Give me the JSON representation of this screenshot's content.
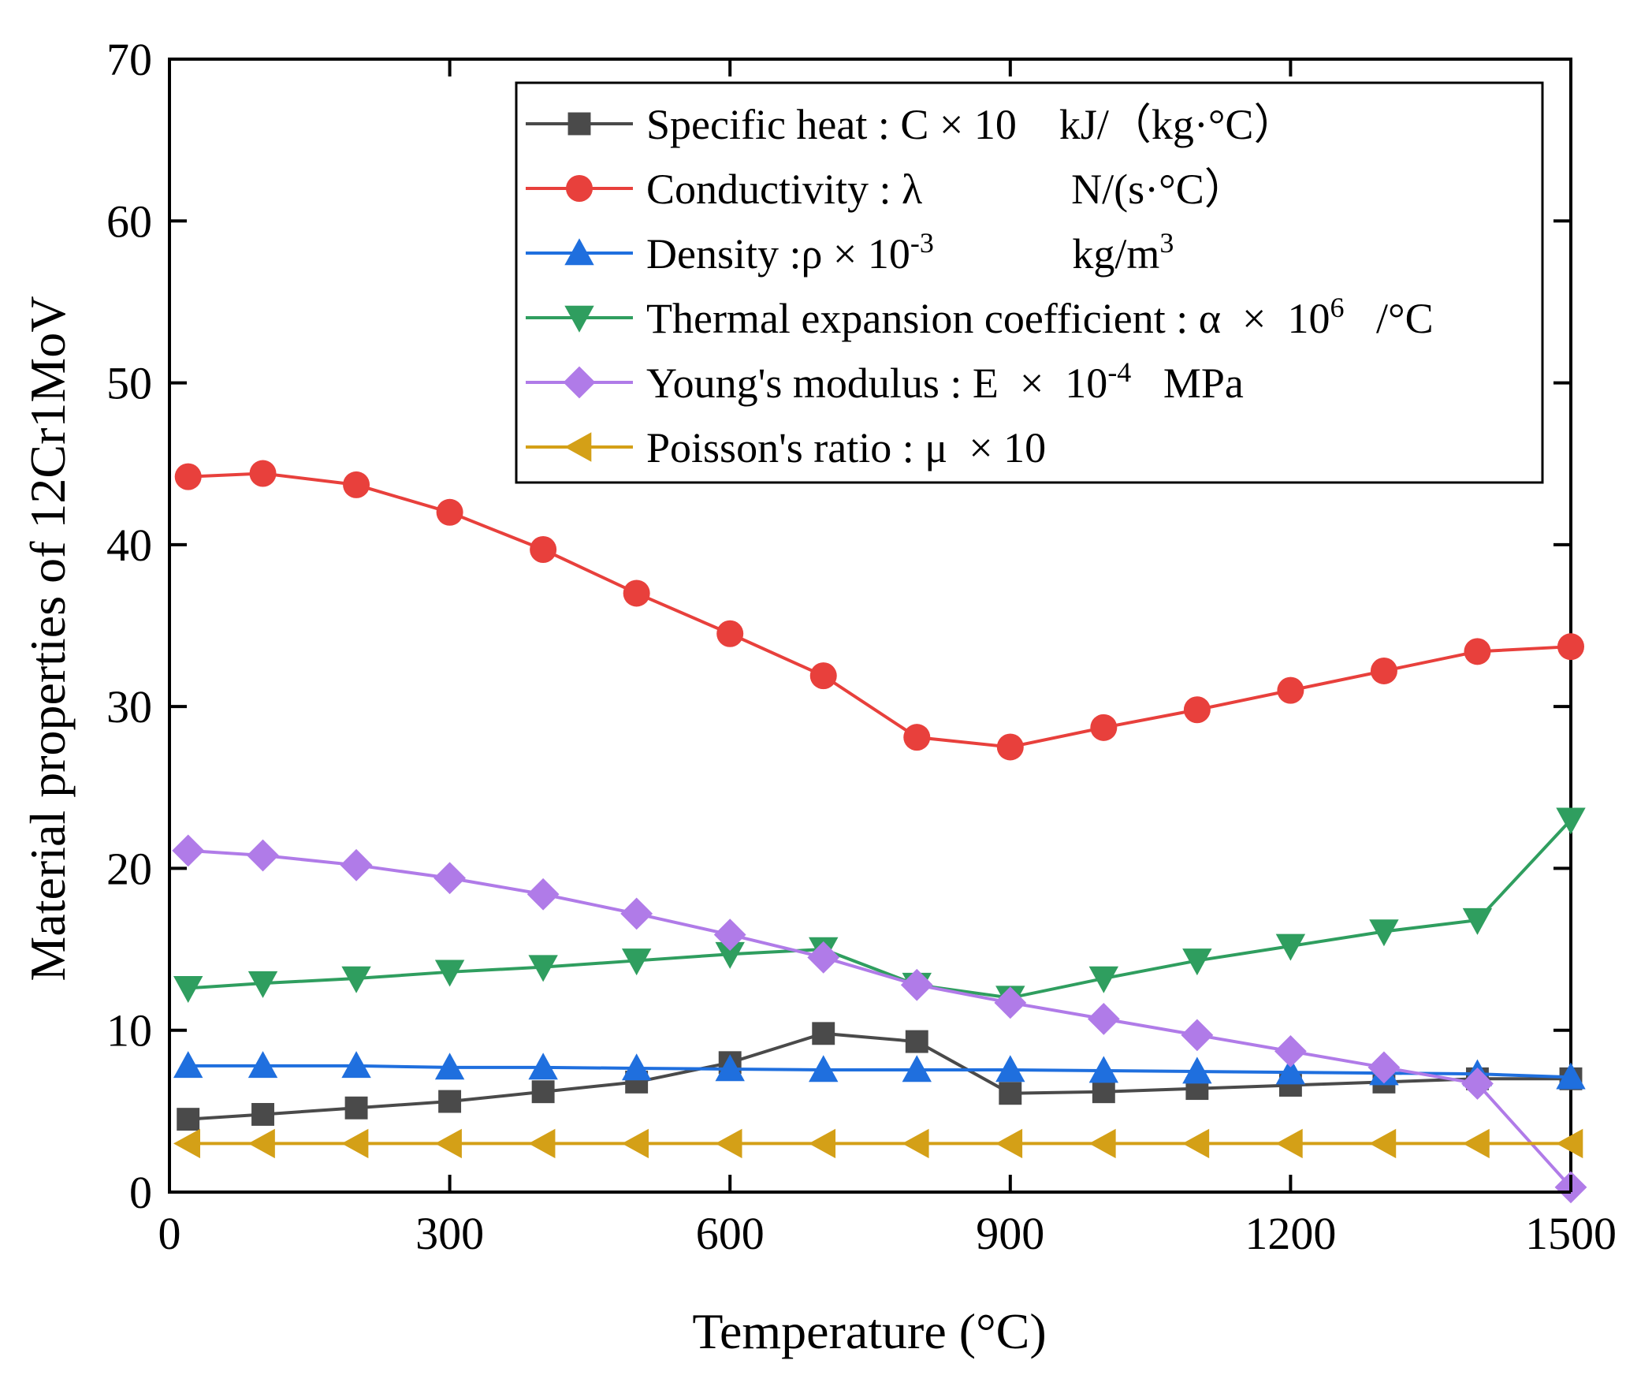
{
  "chart_data": {
    "type": "line",
    "title": "",
    "xlabel": "Temperature (°C)",
    "ylabel": "Material properties of 12Cr1MoV",
    "xlim": [
      0,
      1500
    ],
    "ylim": [
      0,
      70
    ],
    "xticks": [
      0,
      300,
      600,
      900,
      1200,
      1500
    ],
    "yticks": [
      0,
      10,
      20,
      30,
      40,
      50,
      60,
      70
    ],
    "x": [
      20,
      100,
      200,
      300,
      400,
      500,
      600,
      700,
      800,
      900,
      1000,
      1100,
      1200,
      1300,
      1400,
      1500
    ],
    "grid": false,
    "legend_position": "top-right",
    "series": [
      {
        "name": "Specific heat",
        "legend_label": "Specific heat : C × 10    kJ/（kg·°C）",
        "color": "#4a4a4a",
        "marker": "square",
        "values": [
          4.5,
          4.8,
          5.2,
          5.6,
          6.2,
          6.8,
          8.0,
          9.8,
          9.3,
          6.1,
          6.2,
          6.4,
          6.6,
          6.8,
          7.0,
          7.0
        ]
      },
      {
        "name": "Conductivity",
        "legend_label": "Conductivity : λ              N/(s·°C）",
        "color": "#e8403c",
        "marker": "circle",
        "values": [
          44.2,
          44.4,
          43.7,
          42.0,
          39.7,
          37.0,
          34.5,
          31.9,
          28.1,
          27.5,
          28.7,
          29.8,
          31.0,
          32.2,
          33.4,
          33.7
        ]
      },
      {
        "name": "Density",
        "legend_label": "Density :ρ × 10-3             kg/m3",
        "color": "#1f6fde",
        "marker": "triangle-up",
        "values": [
          7.8,
          7.8,
          7.8,
          7.7,
          7.7,
          7.65,
          7.6,
          7.55,
          7.55,
          7.55,
          7.5,
          7.45,
          7.4,
          7.35,
          7.3,
          7.1
        ]
      },
      {
        "name": "Thermal expansion coefficient",
        "legend_label": "Thermal expansion coefficient : α  ×  106   /°C",
        "color": "#2f9e5f",
        "marker": "triangle-down",
        "values": [
          12.6,
          12.9,
          13.2,
          13.6,
          13.9,
          14.3,
          14.7,
          15.0,
          12.8,
          12.0,
          13.2,
          14.3,
          15.2,
          16.1,
          16.8,
          23.0
        ]
      },
      {
        "name": "Young's modulus",
        "legend_label": "Young's modulus : E  ×  10-4   MPa",
        "color": "#b07be8",
        "marker": "diamond",
        "values": [
          21.1,
          20.8,
          20.2,
          19.4,
          18.4,
          17.2,
          15.9,
          14.5,
          12.8,
          11.7,
          10.7,
          9.7,
          8.7,
          7.7,
          6.7,
          0.3
        ]
      },
      {
        "name": "Poisson's ratio",
        "legend_label": "Poisson's ratio : μ  × 10",
        "color": "#d4a017",
        "marker": "triangle-left",
        "values": [
          3.0,
          3.0,
          3.0,
          3.0,
          3.0,
          3.0,
          3.0,
          3.0,
          3.0,
          3.0,
          3.0,
          3.0,
          3.0,
          3.0,
          3.0,
          3.0
        ]
      }
    ],
    "legend": [
      {
        "parts": [
          {
            "t": "Specific heat : C × 10    kJ/（kg·°C）"
          }
        ]
      },
      {
        "parts": [
          {
            "t": "Conductivity : λ              N/(s·°C）"
          }
        ]
      },
      {
        "parts": [
          {
            "t": "Density :ρ × 10"
          },
          {
            "t": "-3",
            "sup": true
          },
          {
            "t": "             kg/m"
          },
          {
            "t": "3",
            "sup": true
          }
        ]
      },
      {
        "parts": [
          {
            "t": "Thermal expansion coefficient : α  ×  10"
          },
          {
            "t": "6",
            "sup": true
          },
          {
            "t": "   /°C"
          }
        ]
      },
      {
        "parts": [
          {
            "t": "Young's modulus : E  ×  10"
          },
          {
            "t": "-4",
            "sup": true
          },
          {
            "t": "   MPa"
          }
        ]
      },
      {
        "parts": [
          {
            "t": "Poisson's ratio : μ  × 10"
          }
        ]
      }
    ]
  }
}
